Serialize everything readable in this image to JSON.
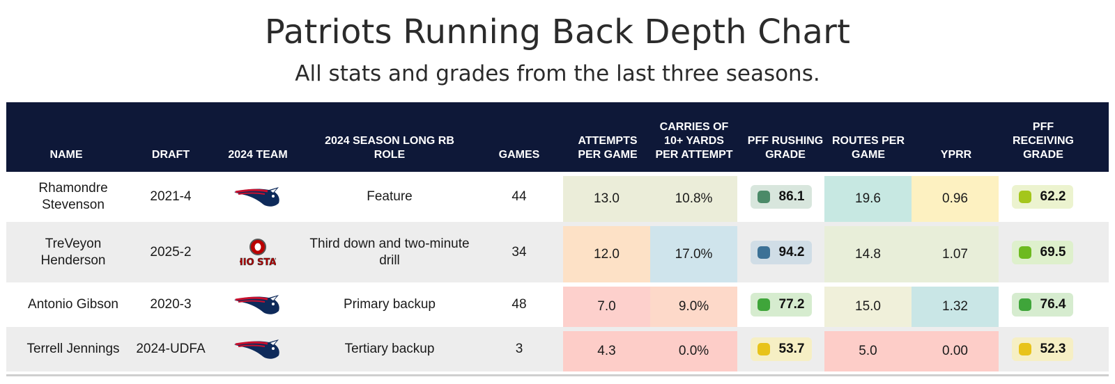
{
  "title": "Patriots Running Back Depth Chart",
  "subtitle": "All stats and grades from the last three seasons.",
  "columns": [
    {
      "key": "name",
      "label": "NAME"
    },
    {
      "key": "draft",
      "label": "DRAFT"
    },
    {
      "key": "team",
      "label": "2024 TEAM"
    },
    {
      "key": "role",
      "label": "2024 SEASON LONG RB ROLE"
    },
    {
      "key": "games",
      "label": "GAMES"
    },
    {
      "key": "attempts",
      "label": "ATTEMPTS PER GAME"
    },
    {
      "key": "carries10",
      "label": "CARRIES OF 10+ YARDS PER ATTEMPT"
    },
    {
      "key": "rush_grade",
      "label": "PFF RUSHING GRADE"
    },
    {
      "key": "routes",
      "label": "ROUTES PER GAME"
    },
    {
      "key": "yprr",
      "label": "YPRR"
    },
    {
      "key": "recv_grade",
      "label": "PFF RECEIVING GRADE"
    }
  ],
  "rows": [
    {
      "name": "Rhamondre Stevenson",
      "draft": "2021-4",
      "team_icon": "patriots-logo-icon",
      "role": "Feature",
      "games": "44",
      "attempts": "13.0",
      "carries10": "10.8%",
      "rush_grade": "86.1",
      "routes": "19.6",
      "yprr": "0.96",
      "recv_grade": "62.2"
    },
    {
      "name": "TreVeyon Henderson",
      "draft": "2025-2",
      "team_icon": "ohio-state-logo-icon",
      "role": "Third down and two-minute drill",
      "games": "34",
      "attempts": "12.0",
      "carries10": "17.0%",
      "rush_grade": "94.2",
      "routes": "14.8",
      "yprr": "1.07",
      "recv_grade": "69.5"
    },
    {
      "name": "Antonio Gibson",
      "draft": "2020-3",
      "team_icon": "patriots-logo-icon",
      "role": "Primary backup",
      "games": "48",
      "attempts": "7.0",
      "carries10": "9.0%",
      "rush_grade": "77.2",
      "routes": "15.0",
      "yprr": "1.32",
      "recv_grade": "76.4"
    },
    {
      "name": "Terrell Jennings",
      "draft": "2024-UDFA",
      "team_icon": "patriots-logo-icon",
      "role": "Tertiary backup",
      "games": "3",
      "attempts": "4.3",
      "carries10": "0.0%",
      "rush_grade": "53.7",
      "routes": "5.0",
      "yprr": "0.00",
      "recv_grade": "52.3"
    }
  ],
  "colors": {
    "header_bg": "#0e1838",
    "attempts": [
      "#ebedd9",
      "#fde1c6",
      "#fdd0cc",
      "#fdcdc8"
    ],
    "carries10": [
      "#ebedd9",
      "#cfe4ec",
      "#fdd9c9",
      "#fdcdc8"
    ],
    "routes": [
      "#c7e8e2",
      "#e8eed9",
      "#f0f0da",
      "#fdcdc8"
    ],
    "yprr": [
      "#fdf1c1",
      "#e8eed9",
      "#c9e6e6",
      "#fdcdc8"
    ],
    "rush_dot": [
      "#4b8a68",
      "#3c7196",
      "#3fa53a",
      "#e8c31a"
    ],
    "rush_pill": [
      "#d8e6dd",
      "#d0dde6",
      "#d6eccf",
      "#f6efc4"
    ],
    "recv_dot": [
      "#a4c61b",
      "#6dba1f",
      "#3fa53a",
      "#e8c31a"
    ],
    "recv_pill": [
      "#ecf3cf",
      "#def0cc",
      "#d6eccf",
      "#f6efc4"
    ]
  }
}
